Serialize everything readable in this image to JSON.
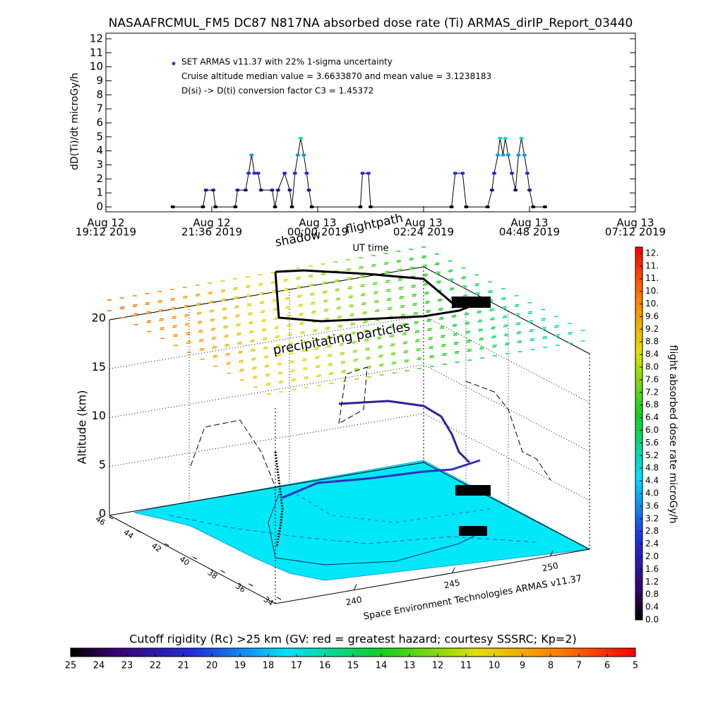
{
  "chart_data": [
    {
      "type": "line",
      "title": "NASAAFRCMUL_FM5 DC87 N817NA absorbed dose rate (Ti) ARMAS_dirIP_Report_03440",
      "y_label": "dD(Ti)/dt microGy/h",
      "x_label": "UT time",
      "legend": [
        "SET ARMAS v11.37 with 22% 1-sigma uncertainty",
        "Cruise altitude median value = 3.6633870 and mean value = 3.1238183",
        "D(si) -> D(ti) conversion factor C3 = 1.45372"
      ],
      "ylim": [
        -0.35,
        12.4
      ],
      "yticks": [
        0,
        1,
        2,
        3,
        4,
        5,
        6,
        7,
        8,
        9,
        10,
        11,
        12
      ],
      "xlim": [
        "2019-08-12T19:12",
        "2019-08-13T07:12"
      ],
      "xticks": [
        {
          "value": "2019-08-12T19:12",
          "label": [
            "Aug 12",
            "19:12 2019"
          ]
        },
        {
          "value": "2019-08-12T21:36",
          "label": [
            "Aug 12",
            "21:36 2019"
          ]
        },
        {
          "value": "2019-08-13T00:00",
          "label": [
            "Aug 13",
            "00:00 2019"
          ]
        },
        {
          "value": "2019-08-13T02:24",
          "label": [
            "Aug 13",
            "02:24 2019"
          ]
        },
        {
          "value": "2019-08-13T04:48",
          "label": [
            "Aug 13",
            "04:48 2019"
          ]
        },
        {
          "value": "2019-08-13T07:12",
          "label": [
            "Aug 13",
            "07:12 2019"
          ]
        }
      ],
      "x": [
        "2019-08-12T20:43",
        "2019-08-12T21:24",
        "2019-08-12T21:28",
        "2019-08-12T21:38",
        "2019-08-12T21:41",
        "2019-08-12T22:08",
        "2019-08-12T22:11",
        "2019-08-12T22:22",
        "2019-08-12T22:26",
        "2019-08-12T22:30",
        "2019-08-12T22:34",
        "2019-08-12T22:39",
        "2019-08-12T22:43",
        "2019-08-12T22:58",
        "2019-08-12T23:02",
        "2019-08-12T23:06",
        "2019-08-12T23:15",
        "2019-08-12T23:22",
        "2019-08-12T23:25",
        "2019-08-12T23:29",
        "2019-08-12T23:33",
        "2019-08-12T23:37",
        "2019-08-12T23:41",
        "2019-08-12T23:45",
        "2019-08-12T23:48",
        "2019-08-12T23:52",
        "2019-08-13T00:58",
        "2019-08-13T01:01",
        "2019-08-13T01:09",
        "2019-08-13T01:12",
        "2019-08-13T03:02",
        "2019-08-13T03:07",
        "2019-08-13T03:17",
        "2019-08-13T03:22",
        "2019-08-13T03:51",
        "2019-08-13T03:57",
        "2019-08-13T04:00",
        "2019-08-13T04:05",
        "2019-08-13T04:08",
        "2019-08-13T04:12",
        "2019-08-13T04:15",
        "2019-08-13T04:19",
        "2019-08-13T04:24",
        "2019-08-13T04:29",
        "2019-08-13T04:33",
        "2019-08-13T04:37",
        "2019-08-13T04:41",
        "2019-08-13T04:45",
        "2019-08-13T04:48",
        "2019-08-13T04:53",
        "2019-08-13T05:09"
      ],
      "series": [
        {
          "name": "SET ARMAS v11.37",
          "color": "#000000",
          "values": [
            0,
            0,
            1.2,
            1.2,
            0,
            0,
            1.2,
            1.2,
            2.4,
            3.7,
            2.4,
            2.4,
            1.2,
            1.2,
            0,
            1.2,
            2.4,
            1.2,
            0,
            2.4,
            3.7,
            4.9,
            3.7,
            2.4,
            1.2,
            0,
            0,
            2.4,
            2.4,
            0,
            0,
            2.4,
            2.4,
            0,
            0,
            1.2,
            2.4,
            3.7,
            4.9,
            3.7,
            4.9,
            3.7,
            2.4,
            1.2,
            3.7,
            4.9,
            3.7,
            2.4,
            1.2,
            0,
            0
          ]
        }
      ]
    },
    {
      "type": "surface3d",
      "z_label": "Altitude (km)",
      "zlim": [
        0,
        20
      ],
      "zticks": [
        0,
        5,
        10,
        15,
        20
      ],
      "xlim": [
        46,
        34
      ],
      "xticks": [
        46,
        44,
        42,
        40,
        38,
        36,
        34
      ],
      "ylim": [
        236,
        252
      ],
      "yticks": [
        240,
        245,
        250
      ],
      "annotations": [
        "shadow",
        "flightpath",
        "precipitating particles",
        "Space Environment Technologies ARMAS v11.37"
      ]
    },
    {
      "type": "colorbar",
      "label": "flight absorbed dose rate microGy/h",
      "lim": [
        0,
        11.8
      ],
      "ticks": [
        {
          "value": 0,
          "label": "0.0"
        },
        0.4,
        0.8,
        1.2,
        1.6,
        {
          "value": 2,
          "label": "2.0"
        },
        2.4,
        2.8,
        3.2,
        3.6,
        {
          "value": 4,
          "label": "4.0"
        },
        4.4,
        4.8,
        5.2,
        5.6,
        {
          "value": 6,
          "label": "6.0"
        },
        6.4,
        6.8,
        7.2,
        7.6,
        {
          "value": 8,
          "label": "8.0"
        },
        8.4,
        8.8,
        9.2,
        9.6,
        {
          "value": 10,
          "label": "10."
        },
        {
          "value": 10.4,
          "label": "10."
        },
        {
          "value": 10.8,
          "label": "11."
        },
        {
          "value": 11.2,
          "label": "11."
        },
        {
          "value": 11.6,
          "label": "12."
        }
      ]
    },
    {
      "type": "colorbar",
      "label": "Cutoff rigidity (Rc) >25 km (GV: red = greatest hazard; courtesy SSSRC; Kp=2)",
      "lim": [
        25,
        5
      ],
      "ticks": [
        25,
        24,
        23,
        22,
        21,
        20,
        19,
        18,
        17,
        16,
        15,
        14,
        13,
        12,
        11,
        10,
        9,
        8,
        7,
        6,
        5
      ]
    }
  ]
}
